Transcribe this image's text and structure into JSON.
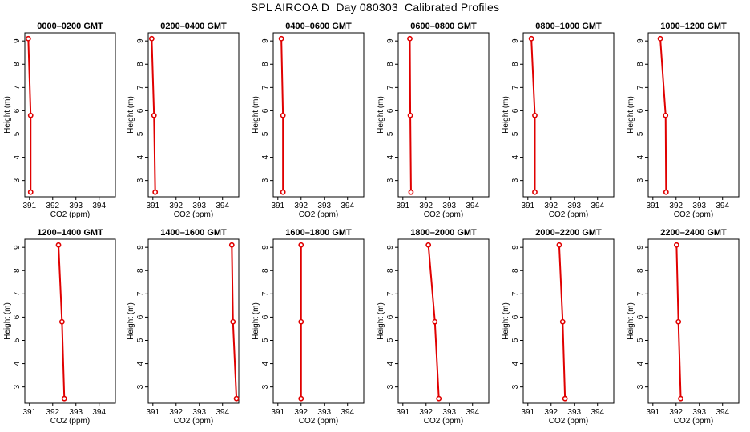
{
  "title": "SPL AIRCOA D  Day 080303  Calibrated Profiles",
  "style": {
    "line_color": "#e00000",
    "axis_color": "#000000"
  },
  "chart_data": [
    {
      "type": "line",
      "title": "0000–0200 GMT",
      "xlabel": "CO2 (ppm)",
      "ylabel": "Height (m)",
      "xlim": [
        390.8,
        394.7
      ],
      "ylim": [
        2.3,
        9.35
      ],
      "xticks": [
        391,
        392,
        393,
        394
      ],
      "yticks": [
        3,
        4,
        5,
        6,
        7,
        8,
        9
      ],
      "series": [
        {
          "x": [
            390.95,
            391.05,
            391.05
          ],
          "y": [
            9.1,
            5.8,
            2.5
          ]
        }
      ]
    },
    {
      "type": "line",
      "title": "0200–0400 GMT",
      "xlabel": "CO2 (ppm)",
      "ylabel": "Height (m)",
      "xlim": [
        390.8,
        394.7
      ],
      "ylim": [
        2.3,
        9.35
      ],
      "xticks": [
        391,
        392,
        393,
        394
      ],
      "yticks": [
        3,
        4,
        5,
        6,
        7,
        8,
        9
      ],
      "series": [
        {
          "x": [
            390.95,
            391.05,
            391.1
          ],
          "y": [
            9.1,
            5.8,
            2.5
          ]
        }
      ]
    },
    {
      "type": "line",
      "title": "0400–0600 GMT",
      "xlabel": "CO2 (ppm)",
      "ylabel": "Height (m)",
      "xlim": [
        390.8,
        394.7
      ],
      "ylim": [
        2.3,
        9.35
      ],
      "xticks": [
        391,
        392,
        393,
        394
      ],
      "yticks": [
        3,
        4,
        5,
        6,
        7,
        8,
        9
      ],
      "series": [
        {
          "x": [
            391.15,
            391.22,
            391.22
          ],
          "y": [
            9.1,
            5.8,
            2.5
          ]
        }
      ]
    },
    {
      "type": "line",
      "title": "0600–0800 GMT",
      "xlabel": "CO2 (ppm)",
      "ylabel": "Height (m)",
      "xlim": [
        390.8,
        394.7
      ],
      "ylim": [
        2.3,
        9.35
      ],
      "xticks": [
        391,
        392,
        393,
        394
      ],
      "yticks": [
        3,
        4,
        5,
        6,
        7,
        8,
        9
      ],
      "series": [
        {
          "x": [
            391.3,
            391.32,
            391.35
          ],
          "y": [
            9.1,
            5.8,
            2.5
          ]
        }
      ]
    },
    {
      "type": "line",
      "title": "0800–1000 GMT",
      "xlabel": "CO2 (ppm)",
      "ylabel": "Height (m)",
      "xlim": [
        390.8,
        394.7
      ],
      "ylim": [
        2.3,
        9.35
      ],
      "xticks": [
        391,
        392,
        393,
        394
      ],
      "yticks": [
        3,
        4,
        5,
        6,
        7,
        8,
        9
      ],
      "series": [
        {
          "x": [
            391.15,
            391.3,
            391.3
          ],
          "y": [
            9.1,
            5.8,
            2.5
          ]
        }
      ]
    },
    {
      "type": "line",
      "title": "1000–1200 GMT",
      "xlabel": "CO2 (ppm)",
      "ylabel": "Height (m)",
      "xlim": [
        390.8,
        394.7
      ],
      "ylim": [
        2.3,
        9.35
      ],
      "xticks": [
        391,
        392,
        393,
        394
      ],
      "yticks": [
        3,
        4,
        5,
        6,
        7,
        8,
        9
      ],
      "series": [
        {
          "x": [
            391.32,
            391.55,
            391.57
          ],
          "y": [
            9.1,
            5.8,
            2.5
          ]
        }
      ]
    },
    {
      "type": "line",
      "title": "1200–1400 GMT",
      "xlabel": "CO2 (ppm)",
      "ylabel": "Height (m)",
      "xlim": [
        390.8,
        394.7
      ],
      "ylim": [
        2.3,
        9.35
      ],
      "xticks": [
        391,
        392,
        393,
        394
      ],
      "yticks": [
        3,
        4,
        5,
        6,
        7,
        8,
        9
      ],
      "series": [
        {
          "x": [
            392.25,
            392.4,
            392.5
          ],
          "y": [
            9.1,
            5.8,
            2.5
          ]
        }
      ]
    },
    {
      "type": "line",
      "title": "1400–1600 GMT",
      "xlabel": "CO2 (ppm)",
      "ylabel": "Height (m)",
      "xlim": [
        390.8,
        394.7
      ],
      "ylim": [
        2.3,
        9.35
      ],
      "xticks": [
        391,
        392,
        393,
        394
      ],
      "yticks": [
        3,
        4,
        5,
        6,
        7,
        8,
        9
      ],
      "series": [
        {
          "x": [
            394.4,
            394.45,
            394.6
          ],
          "y": [
            9.1,
            5.8,
            2.5
          ]
        }
      ]
    },
    {
      "type": "line",
      "title": "1600–1800 GMT",
      "xlabel": "CO2 (ppm)",
      "ylabel": "Height (m)",
      "xlim": [
        390.8,
        394.7
      ],
      "ylim": [
        2.3,
        9.35
      ],
      "xticks": [
        391,
        392,
        393,
        394
      ],
      "yticks": [
        3,
        4,
        5,
        6,
        7,
        8,
        9
      ],
      "series": [
        {
          "x": [
            392.0,
            392.0,
            392.0
          ],
          "y": [
            9.1,
            5.8,
            2.5
          ]
        }
      ]
    },
    {
      "type": "line",
      "title": "1800–2000 GMT",
      "xlabel": "CO2 (ppm)",
      "ylabel": "Height (m)",
      "xlim": [
        390.8,
        394.7
      ],
      "ylim": [
        2.3,
        9.35
      ],
      "xticks": [
        391,
        392,
        393,
        394
      ],
      "yticks": [
        3,
        4,
        5,
        6,
        7,
        8,
        9
      ],
      "series": [
        {
          "x": [
            392.1,
            392.38,
            392.55
          ],
          "y": [
            9.1,
            5.8,
            2.5
          ]
        }
      ]
    },
    {
      "type": "line",
      "title": "2000–2200 GMT",
      "xlabel": "CO2 (ppm)",
      "ylabel": "Height (m)",
      "xlim": [
        390.8,
        394.7
      ],
      "ylim": [
        2.3,
        9.35
      ],
      "xticks": [
        391,
        392,
        393,
        394
      ],
      "yticks": [
        3,
        4,
        5,
        6,
        7,
        8,
        9
      ],
      "series": [
        {
          "x": [
            392.35,
            392.5,
            392.6
          ],
          "y": [
            9.1,
            5.8,
            2.5
          ]
        }
      ]
    },
    {
      "type": "line",
      "title": "2200–2400 GMT",
      "xlabel": "CO2 (ppm)",
      "ylabel": "Height (m)",
      "xlim": [
        390.8,
        394.7
      ],
      "ylim": [
        2.3,
        9.35
      ],
      "xticks": [
        391,
        392,
        393,
        394
      ],
      "yticks": [
        3,
        4,
        5,
        6,
        7,
        8,
        9
      ],
      "series": [
        {
          "x": [
            392.02,
            392.1,
            392.2
          ],
          "y": [
            9.1,
            5.8,
            2.5
          ]
        }
      ]
    }
  ]
}
